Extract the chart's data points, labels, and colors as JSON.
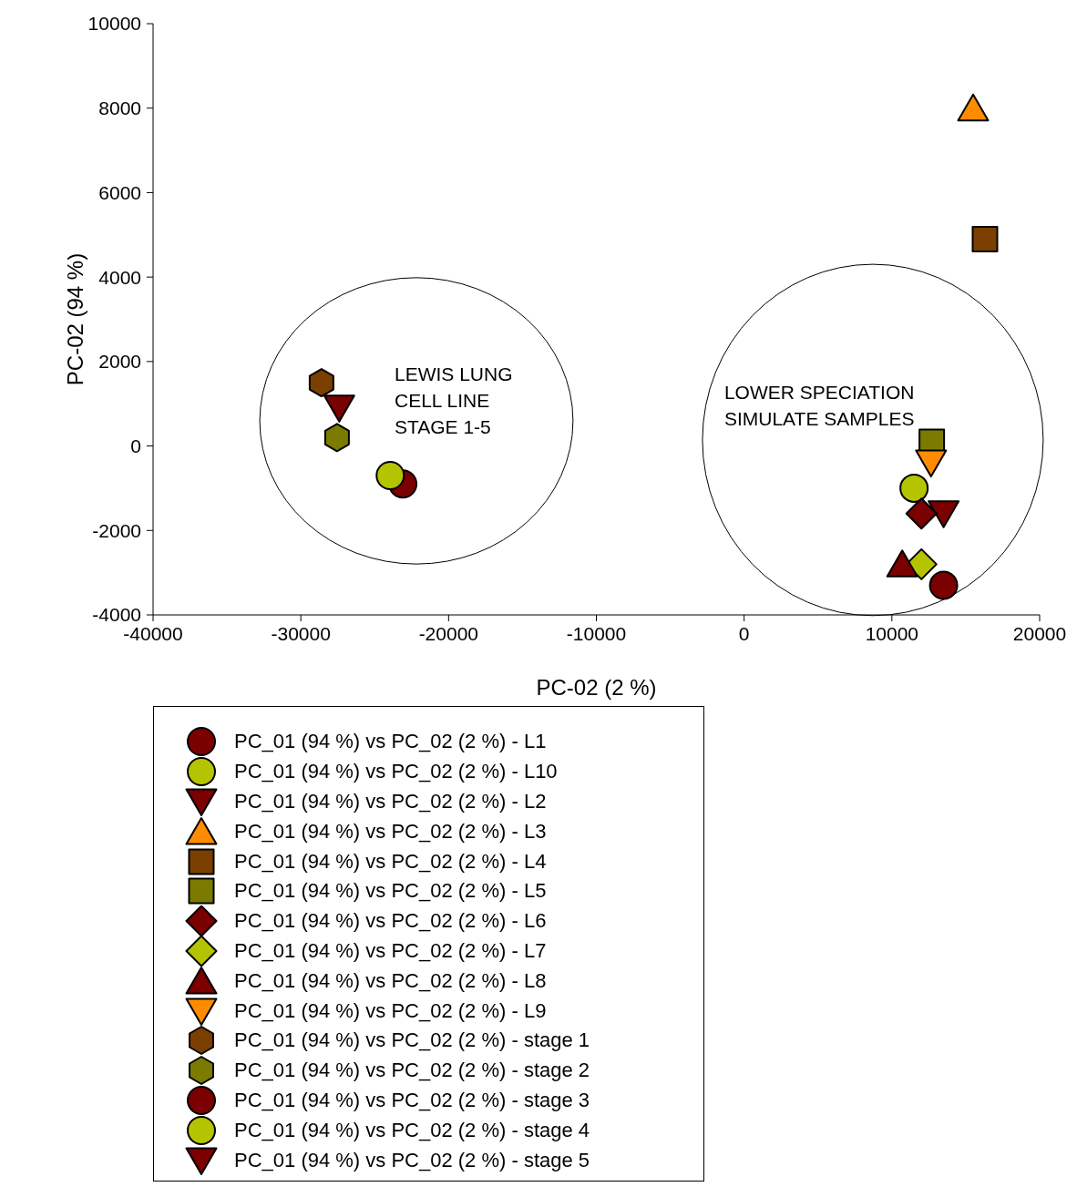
{
  "chart_data": {
    "type": "scatter",
    "xlabel": "PC-02 (2 %)",
    "ylabel": "PC-02 (94 %)",
    "xlim": [
      -40000,
      20000
    ],
    "xticks": [
      -40000,
      -30000,
      -20000,
      -10000,
      0,
      10000,
      20000
    ],
    "ylim": [
      -4000,
      10000
    ],
    "yticks": [
      -4000,
      -2000,
      0,
      2000,
      4000,
      6000,
      8000,
      10000
    ],
    "grid": false,
    "legend": "bottom",
    "annotations": [
      "LEWIS LUNG\nCELL LINE\nSTAGE 1-5",
      "LOWER SPECIATION\nSIMULATE SAMPLES"
    ],
    "series": [
      {
        "name": "PC_01 (94 %) vs PC_02 (2 %) - L1",
        "color": "#7b0000",
        "marker": "circle",
        "x": [
          13500
        ],
        "values": [
          -3300
        ]
      },
      {
        "name": "PC_01 (94 %) vs PC_02 (2 %) - L10",
        "color": "#b5c400",
        "marker": "circle",
        "x": [
          11500
        ],
        "values": [
          -1000
        ]
      },
      {
        "name": "PC_01 (94 %) vs PC_02 (2 %) - L2",
        "color": "#7b0000",
        "marker": "triangle-down",
        "x": [
          13500
        ],
        "values": [
          -1600
        ]
      },
      {
        "name": "PC_01 (94 %) vs PC_02 (2 %) - L3",
        "color": "#ff8c00",
        "marker": "triangle",
        "x": [
          15500
        ],
        "values": [
          8000
        ]
      },
      {
        "name": "PC_01 (94 %) vs PC_02 (2 %) - L4",
        "color": "#7b3f00",
        "marker": "square",
        "x": [
          16300
        ],
        "values": [
          4900
        ]
      },
      {
        "name": "PC_01 (94 %) vs PC_02 (2 %) - L5",
        "color": "#7b7b00",
        "marker": "square",
        "x": [
          12700
        ],
        "values": [
          100
        ]
      },
      {
        "name": "PC_01 (94 %) vs PC_02 (2 %) - L6",
        "color": "#7b0000",
        "marker": "diamond",
        "x": [
          12000
        ],
        "values": [
          -1600
        ]
      },
      {
        "name": "PC_01 (94 %) vs PC_02 (2 %) - L7",
        "color": "#b5c400",
        "marker": "diamond",
        "x": [
          12000
        ],
        "values": [
          -2800
        ]
      },
      {
        "name": "PC_01 (94 %) vs PC_02 (2 %) - L8",
        "color": "#7b0000",
        "marker": "triangle",
        "x": [
          10700
        ],
        "values": [
          -2800
        ]
      },
      {
        "name": "PC_01 (94 %) vs PC_02 (2 %) - L9",
        "color": "#ff8c00",
        "marker": "triangle-down",
        "x": [
          12650
        ],
        "values": [
          -400
        ]
      },
      {
        "name": "PC_01 (94 %) vs PC_02 (2 %) - stage 1",
        "color": "#7b3f00",
        "x": [
          -28600
        ],
        "values": [
          1500
        ]
      },
      {
        "name": "PC_01 (94 %) vs PC_02 (2 %) - stage 2",
        "color": "#7b7b00",
        "x": [
          -27550
        ],
        "values": [
          200
        ]
      },
      {
        "name": "PC_01 (94 %) vs PC_02 (2 %) - stage 3",
        "color": "#7b0000",
        "marker": "circle",
        "x": [
          -23100
        ],
        "values": [
          -900
        ]
      },
      {
        "name": "PC_01 (94 %) vs PC_02 (2 %) - stage 4",
        "color": "#b5c400",
        "marker": "circle",
        "x": [
          -23950
        ],
        "values": [
          -700
        ]
      },
      {
        "name": "PC_01 (94 %) vs PC_02 (2 %) - stage 5",
        "color": "#7b0000",
        "marker": "triangle-down",
        "x": [
          -27400
        ],
        "values": [
          900
        ]
      }
    ]
  }
}
